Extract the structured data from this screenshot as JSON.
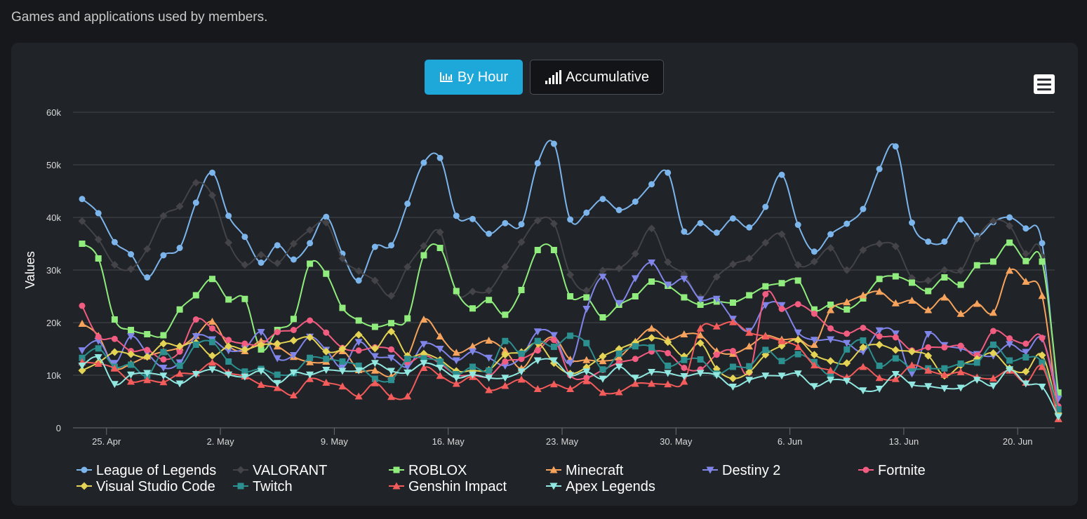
{
  "page": {
    "caption": "Games and applications used by members."
  },
  "toolbar": {
    "by_hour_label": "By Hour",
    "accumulative_label": "Accumulative",
    "by_hour_icon": "bar-chart-icon",
    "accumulative_icon": "signal-bars-icon",
    "menu_icon": "hamburger-menu-icon"
  },
  "chart_data": {
    "type": "line",
    "title": "",
    "xlabel": "",
    "ylabel": "Values",
    "ylim": [
      0,
      60000
    ],
    "y_ticks": [
      0,
      10000,
      20000,
      30000,
      40000,
      50000,
      60000
    ],
    "y_tick_labels": [
      "0",
      "10k",
      "20k",
      "30k",
      "40k",
      "50k",
      "60k"
    ],
    "x_day_range": [
      0,
      59
    ],
    "x_ticks": [
      {
        "label": "25. Apr",
        "day": 1.5
      },
      {
        "label": "2. May",
        "day": 8.5
      },
      {
        "label": "9. May",
        "day": 15.5
      },
      {
        "label": "16. May",
        "day": 22.5
      },
      {
        "label": "23. May",
        "day": 29.5
      },
      {
        "label": "30. May",
        "day": 36.5
      },
      {
        "label": "6. Jun",
        "day": 43.5
      },
      {
        "label": "13. Jun",
        "day": 50.5
      },
      {
        "label": "20. Jun",
        "day": 57.5
      }
    ],
    "grid": true,
    "legend_position": "bottom",
    "series": [
      {
        "name": "League of Legends",
        "color": "#7cb5ec",
        "marker": "circle",
        "values": [
          43.5,
          40.8,
          35.3,
          33,
          28.6,
          32.8,
          34.2,
          42.8,
          48.5,
          40.3,
          36.3,
          31.4,
          34.7,
          32,
          35.1,
          40.1,
          33.1,
          28,
          34.4,
          34.7,
          42.6,
          50.4,
          51.3,
          40.3,
          39.7,
          36.9,
          38.9,
          38.7,
          50.3,
          54,
          39.6,
          40.9,
          43.5,
          41.4,
          43,
          46.3,
          48.5,
          37.3,
          38.9,
          37.1,
          39.8,
          38.1,
          42,
          48.1,
          38.6,
          33.5,
          36.8,
          38.8,
          41.6,
          49.2,
          53.5,
          39,
          35.4,
          35.4,
          39.6,
          36.5,
          39.1,
          40,
          37.9,
          35.1,
          3.8
        ]
      },
      {
        "name": "VALORANT",
        "color": "#434348",
        "marker": "diamond",
        "values": [
          39.3,
          35.8,
          31,
          30.2,
          34,
          40.3,
          42.1,
          46.6,
          44.2,
          35.2,
          31,
          32.9,
          31.3,
          35,
          37.6,
          39,
          32.2,
          29.8,
          28,
          25.1,
          30.6,
          34.6,
          37.2,
          25.7,
          25.9,
          26.1,
          30.6,
          35.3,
          39.4,
          38.8,
          29.1,
          26.1,
          29.9,
          30.3,
          33.1,
          37.9,
          31.5,
          29.2,
          24.8,
          28.7,
          31.1,
          32.2,
          35.2,
          36.8,
          31,
          31.6,
          34.2,
          30,
          33.8,
          35,
          34.5,
          28.5,
          28,
          30,
          29.9,
          36,
          39.3,
          38.4,
          33.1,
          32.6,
          2.4
        ]
      },
      {
        "name": "ROBLOX",
        "color": "#90ed7d",
        "marker": "square",
        "values": [
          35,
          32.2,
          20.6,
          18.6,
          17.8,
          17.6,
          22.5,
          25.2,
          28.3,
          24.4,
          24.5,
          14.9,
          18.6,
          20.7,
          31.2,
          29.3,
          22.8,
          20.4,
          19.2,
          19.9,
          20.8,
          32.8,
          34.2,
          26,
          22.7,
          24.3,
          21.5,
          26.2,
          33.8,
          33.8,
          25,
          24.8,
          21,
          23.4,
          25,
          27.8,
          27,
          24.8,
          23.4,
          24,
          23.8,
          25.2,
          26.9,
          27.5,
          28,
          22.5,
          23.4,
          22.5,
          24.6,
          28.3,
          28.8,
          27.6,
          26,
          28.6,
          27.2,
          30.9,
          31.6,
          35.2,
          31.7,
          31.6,
          6.7
        ]
      },
      {
        "name": "Minecraft",
        "color": "#f7a35c",
        "marker": "triangle",
        "values": [
          19.8,
          17.5,
          11.5,
          12.2,
          13.6,
          14.5,
          15.3,
          17.5,
          20.2,
          15.6,
          14.6,
          16.5,
          15.5,
          13.5,
          12.5,
          12.6,
          14.6,
          11,
          10.9,
          9.8,
          13.5,
          20.6,
          17.4,
          14.3,
          15.5,
          16.6,
          14.7,
          11.3,
          15.2,
          17.2,
          13,
          12.9,
          12.7,
          13.4,
          16.4,
          18.9,
          16.8,
          17.8,
          17.6,
          14.6,
          14.1,
          15.5,
          17.5,
          16.8,
          16.9,
          15.8,
          22.4,
          23.9,
          25.2,
          25.9,
          23.7,
          24.2,
          22.4,
          24.8,
          21.7,
          23.6,
          21.9,
          29.9,
          27.8,
          25.1,
          1.7
        ]
      },
      {
        "name": "Destiny 2",
        "color": "#8085e9",
        "marker": "triangle-down",
        "values": [
          14.7,
          16.5,
          12.3,
          17.4,
          14.2,
          11.4,
          12.4,
          17.4,
          16.8,
          14.7,
          15.1,
          18.2,
          13.2,
          13.8,
          17.3,
          14.8,
          11.5,
          16.3,
          13.6,
          13.3,
          11.6,
          15.9,
          15,
          12.8,
          14.5,
          13.3,
          11.8,
          13.5,
          18.3,
          17.6,
          12.3,
          22.6,
          28.7,
          23.7,
          28.4,
          31.4,
          27.2,
          28.3,
          24.4,
          24.5,
          20.7,
          18.4,
          23.3,
          23.3,
          18.1,
          16.7,
          16.8,
          16.1,
          14.5,
          18.5,
          17.9,
          10.3,
          17.8,
          15.7,
          15.1,
          14,
          13.7,
          15.9,
          14.4,
          16.9,
          5.5
        ]
      },
      {
        "name": "Fortnite",
        "color": "#f15c80",
        "marker": "circle",
        "values": [
          23.2,
          17.3,
          16.9,
          14.6,
          14.8,
          13,
          14.5,
          20.6,
          18.9,
          16.7,
          16,
          15.9,
          18.2,
          18.6,
          20.4,
          18.1,
          15.2,
          14.7,
          15.3,
          14.9,
          12.5,
          13.8,
          12.2,
          10.1,
          10,
          9.8,
          12.6,
          13.1,
          14.7,
          16.7,
          10,
          9.5,
          11,
          12.4,
          13.1,
          14.5,
          14.2,
          11.4,
          11.1,
          13.9,
          14.6,
          10.5,
          25.4,
          22.6,
          23.5,
          21.7,
          18.9,
          17.9,
          19,
          17.4,
          17.2,
          14.7,
          15.3,
          15.3,
          15.6,
          13.8,
          18.4,
          17,
          16,
          17.1,
          4.1
        ]
      },
      {
        "name": "Visual Studio Code",
        "color": "#e4d354",
        "marker": "diamond",
        "values": [
          10.9,
          12.4,
          14.4,
          14,
          13.5,
          16,
          15.5,
          16.2,
          13.7,
          15.5,
          14.9,
          15.8,
          16,
          16.6,
          17.2,
          14.5,
          15,
          17.7,
          15.1,
          18.3,
          13.7,
          14.1,
          12.9,
          10.8,
          10.9,
          11,
          13.9,
          14.4,
          16.1,
          12.3,
          10.3,
          11.5,
          13.6,
          15,
          16.2,
          17.1,
          16.3,
          13.6,
          16.1,
          11.2,
          9.4,
          10.6,
          13.9,
          15.6,
          16.7,
          13.9,
          12.7,
          12.3,
          15.3,
          15.8,
          14.8,
          14.5,
          13.7,
          9.9,
          11.9,
          13.1,
          14.2,
          11.3,
          10.7,
          13.8,
          2.8
        ]
      },
      {
        "name": "Twitch",
        "color": "#2b908f",
        "marker": "square",
        "values": [
          13.3,
          15.1,
          11.6,
          12,
          9.9,
          14.4,
          11.8,
          15.8,
          16.3,
          12.6,
          10.7,
          11.2,
          10.1,
          10.4,
          13.3,
          13.1,
          12.6,
          11.8,
          9.3,
          9.1,
          13.1,
          13.2,
          12.6,
          10.2,
          11.6,
          10.9,
          16.5,
          14.1,
          16.5,
          15.4,
          17.5,
          16.1,
          11.1,
          14.1,
          15.5,
          15.3,
          11.8,
          12.9,
          13,
          10.3,
          11.6,
          11.7,
          14.8,
          12.7,
          14,
          12.5,
          10.2,
          14.9,
          16.6,
          11.8,
          13.2,
          11.3,
          11.3,
          11.3,
          12.2,
          12.4,
          15.8,
          12.8,
          13.4,
          12.4,
          3.5
        ]
      },
      {
        "name": "Genshin Impact",
        "color": "#f45b5b",
        "marker": "triangle",
        "values": [
          12.5,
          12.2,
          11.3,
          8.8,
          9.1,
          8.7,
          10.3,
          10.4,
          12.4,
          10.5,
          9.8,
          8.2,
          7.6,
          6.2,
          9.3,
          8.6,
          7.9,
          6,
          8.5,
          5.9,
          6,
          11.4,
          9.9,
          8.4,
          9.7,
          7.2,
          8,
          9.2,
          7.4,
          8.3,
          7.4,
          8.9,
          6.7,
          6.8,
          8.4,
          8.4,
          8.3,
          8.8,
          18.9,
          19.3,
          20.1,
          18.1,
          17.4,
          16.5,
          15.4,
          11.9,
          10.9,
          9.6,
          11.6,
          9.5,
          9.3,
          11.9,
          10.9,
          10.1,
          10.6,
          9.6,
          9.4,
          10.9,
          8.6,
          11.6,
          1.7
        ]
      },
      {
        "name": "Apex Legends",
        "color": "#91e8e1",
        "marker": "triangle-down",
        "values": [
          11.8,
          13.4,
          8.3,
          10.1,
          10.4,
          9.9,
          8.4,
          10.2,
          11.1,
          10.1,
          9.7,
          10.8,
          8.5,
          10.5,
          10.1,
          11,
          10.8,
          10.9,
          12.3,
          10.8,
          10.5,
          12.3,
          11.4,
          9.5,
          10.1,
          9.5,
          9.5,
          10.7,
          12.8,
          12.8,
          10,
          10.7,
          9.3,
          11.6,
          9.5,
          10.6,
          10.4,
          9.8,
          10.4,
          10,
          7.8,
          9.1,
          9.9,
          9.9,
          10.3,
          7.9,
          9.1,
          8.9,
          7.1,
          7.4,
          10.2,
          8.2,
          7.9,
          7.5,
          7.6,
          9.1,
          8,
          11.1,
          8.4,
          7.8,
          2.1
        ]
      }
    ]
  }
}
